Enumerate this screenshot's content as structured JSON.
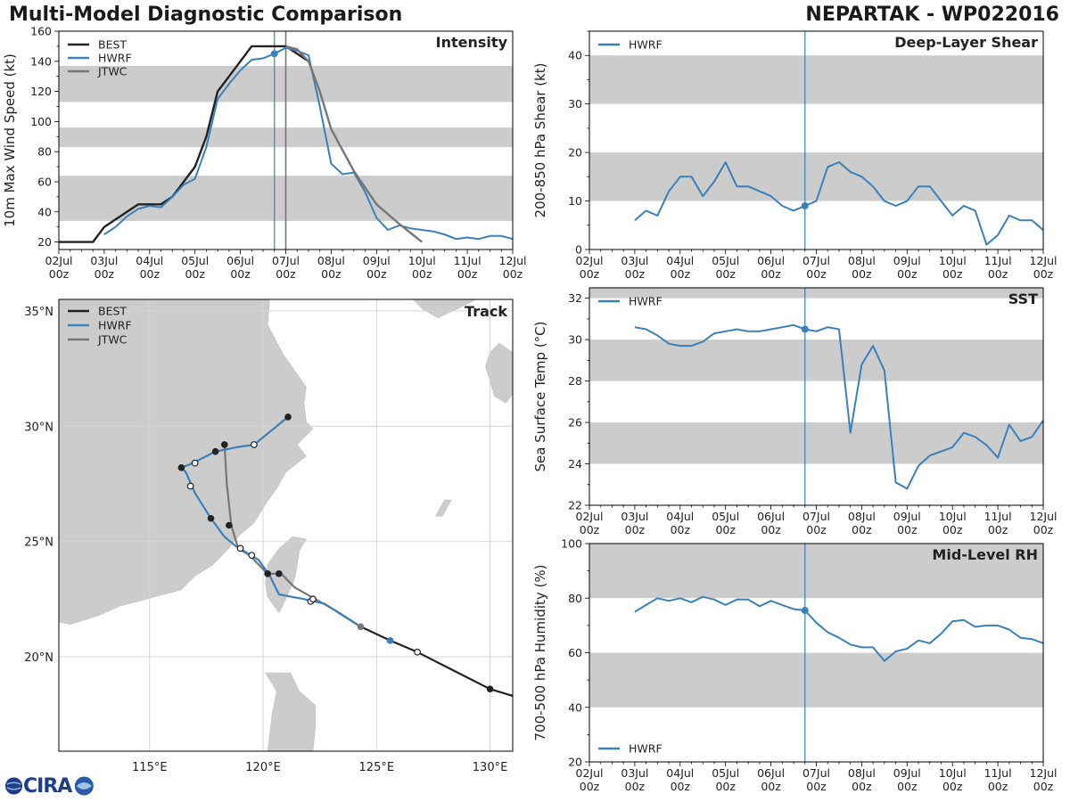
{
  "header": {
    "title": "Multi-Model Diagnostic Comparison",
    "storm": "NEPARTAK - WP022016"
  },
  "logo": {
    "text": "CIRA"
  },
  "colors": {
    "best": "#222222",
    "hwrf": "#3a80ba",
    "jtwc": "#777777",
    "band": "#cccccc",
    "land": "#cccccc",
    "frame": "#000000"
  },
  "xticks": [
    "02Jul\n00z",
    "03Jul\n00z",
    "04Jul\n00z",
    "05Jul\n00z",
    "06Jul\n00z",
    "07Jul\n00z",
    "08Jul\n00z",
    "09Jul\n00z",
    "10Jul\n00z",
    "11Jul\n00z",
    "12Jul\n00z"
  ],
  "current_time_day": 4.75,
  "chart_data": [
    {
      "id": "intensity",
      "type": "line",
      "title": "Intensity",
      "ylabel": "10m Max Wind Speed (kt)",
      "xlim": [
        0,
        10
      ],
      "ylim": [
        15,
        160
      ],
      "yticks": [
        20,
        40,
        60,
        80,
        100,
        120,
        140,
        160
      ],
      "bands": [
        [
          34,
          64
        ],
        [
          83,
          96
        ],
        [
          113,
          137
        ]
      ],
      "legend": [
        "BEST",
        "HWRF",
        "JTWC"
      ],
      "extra_vline_day": 5.0,
      "series": [
        {
          "name": "BEST",
          "x": [
            0,
            0.75,
            1,
            1.25,
            1.5,
            1.75,
            2,
            2.25,
            2.5,
            2.75,
            3,
            3.25,
            3.5,
            3.75,
            4,
            4.25,
            4.5,
            4.75,
            5,
            5.25,
            5.5
          ],
          "y": [
            20,
            20,
            30,
            35,
            40,
            45,
            45,
            45,
            50,
            60,
            70,
            90,
            120,
            130,
            140,
            150,
            150,
            150,
            150,
            145,
            140
          ]
        },
        {
          "name": "HWRF",
          "x": [
            1,
            1.25,
            1.5,
            1.75,
            2,
            2.25,
            2.5,
            2.75,
            3,
            3.25,
            3.5,
            3.75,
            4,
            4.25,
            4.5,
            4.75,
            5,
            5.25,
            5.5,
            5.75,
            6,
            6.25,
            6.5,
            6.75,
            7,
            7.25,
            7.5,
            7.75,
            8,
            8.25,
            8.5,
            8.75,
            9,
            9.25,
            9.5,
            9.75,
            10
          ],
          "y": [
            25,
            30,
            37,
            42,
            44,
            43,
            50,
            58,
            62,
            83,
            115,
            125,
            134,
            141,
            142,
            145,
            149,
            147,
            144,
            110,
            72,
            65,
            66,
            53,
            36,
            28,
            31,
            29,
            28,
            27,
            25,
            22,
            23,
            22,
            24,
            24,
            22
          ],
          "marker_x": 4.75,
          "marker_y": 145
        },
        {
          "name": "JTWC",
          "x": [
            5.0,
            5.25,
            5.5,
            5.75,
            6.0,
            6.5,
            7.0,
            7.5,
            8.0
          ],
          "y": [
            150,
            148,
            140,
            120,
            95,
            67,
            45,
            32,
            20
          ]
        }
      ]
    },
    {
      "id": "shear",
      "type": "line",
      "title": "Deep-Layer Shear",
      "ylabel": "200-850 hPa Shear (kt)",
      "xlim": [
        0,
        10
      ],
      "ylim": [
        0,
        45
      ],
      "yticks": [
        0,
        10,
        20,
        30,
        40
      ],
      "bands": [
        [
          10,
          20
        ],
        [
          30,
          40
        ]
      ],
      "legend": [
        "HWRF"
      ],
      "series": [
        {
          "name": "HWRF",
          "x": [
            1,
            1.25,
            1.5,
            1.75,
            2,
            2.25,
            2.5,
            2.75,
            3,
            3.25,
            3.5,
            3.75,
            4,
            4.25,
            4.5,
            4.75,
            5,
            5.25,
            5.5,
            5.75,
            6,
            6.25,
            6.5,
            6.75,
            7,
            7.25,
            7.5,
            7.75,
            8,
            8.25,
            8.5,
            8.75,
            9,
            9.25,
            9.5,
            9.75,
            10
          ],
          "y": [
            6,
            8,
            7,
            12,
            15,
            15,
            11,
            14,
            18,
            13,
            13,
            12,
            11,
            9,
            8,
            9,
            10,
            17,
            18,
            16,
            15,
            13,
            10,
            9,
            10,
            13,
            13,
            10,
            7,
            9,
            8,
            1,
            3,
            7,
            6,
            6,
            4
          ],
          "marker_x": 4.75,
          "marker_y": 9
        }
      ]
    },
    {
      "id": "sst",
      "type": "line",
      "title": "SST",
      "ylabel": "Sea Surface Temp (°C)",
      "xlim": [
        0,
        10
      ],
      "ylim": [
        22,
        32.5
      ],
      "yticks": [
        22,
        24,
        26,
        28,
        30,
        32
      ],
      "bands": [
        [
          24,
          26
        ],
        [
          28,
          30
        ],
        [
          32,
          32.5
        ]
      ],
      "legend": [
        "HWRF"
      ],
      "series": [
        {
          "name": "HWRF",
          "x": [
            1,
            1.25,
            1.5,
            1.75,
            2,
            2.25,
            2.5,
            2.75,
            3,
            3.25,
            3.5,
            3.75,
            4,
            4.25,
            4.5,
            4.75,
            5,
            5.25,
            5.5,
            5.75,
            6,
            6.25,
            6.5,
            6.75,
            7,
            7.25,
            7.5,
            7.75,
            8,
            8.25,
            8.5,
            8.75,
            9,
            9.25,
            9.5,
            9.75,
            10
          ],
          "y": [
            30.6,
            30.5,
            30.2,
            29.8,
            29.7,
            29.7,
            29.9,
            30.3,
            30.4,
            30.5,
            30.4,
            30.4,
            30.5,
            30.6,
            30.7,
            30.5,
            30.4,
            30.6,
            30.5,
            25.5,
            28.8,
            29.7,
            28.5,
            23.1,
            22.8,
            23.9,
            24.4,
            24.6,
            24.8,
            25.5,
            25.3,
            24.9,
            24.3,
            25.9,
            25.1,
            25.3,
            26.1
          ],
          "marker_x": 4.75,
          "marker_y": 30.5
        }
      ]
    },
    {
      "id": "rh",
      "type": "line",
      "title": "Mid-Level RH",
      "ylabel": "700-500 hPa Humidity (%)",
      "xlim": [
        0,
        10
      ],
      "ylim": [
        20,
        100
      ],
      "yticks": [
        20,
        40,
        60,
        80,
        100
      ],
      "bands": [
        [
          40,
          60
        ],
        [
          80,
          100
        ]
      ],
      "legend": [
        "HWRF"
      ],
      "legend_position": "bottom-left",
      "series": [
        {
          "name": "HWRF",
          "x": [
            1,
            1.25,
            1.5,
            1.75,
            2,
            2.25,
            2.5,
            2.75,
            3,
            3.25,
            3.5,
            3.75,
            4,
            4.25,
            4.5,
            4.75,
            5,
            5.25,
            5.5,
            5.75,
            6,
            6.25,
            6.5,
            6.75,
            7,
            7.25,
            7.5,
            7.75,
            8,
            8.25,
            8.5,
            8.75,
            9,
            9.25,
            9.5,
            9.75,
            10
          ],
          "y": [
            75,
            77.5,
            80,
            79,
            80,
            78.5,
            80.5,
            79.5,
            77.5,
            79.5,
            79.5,
            77,
            79,
            77.5,
            76,
            75.5,
            71,
            67.5,
            65.5,
            63,
            62,
            62,
            57,
            60.5,
            61.5,
            64.5,
            63.5,
            67,
            71.5,
            72,
            69.5,
            70,
            70,
            68.5,
            65.5,
            65,
            63.5
          ],
          "marker_x": 4.75,
          "marker_y": 75.5
        }
      ]
    },
    {
      "id": "track",
      "type": "line",
      "title": "Track",
      "xlim": [
        111,
        131
      ],
      "ylim": [
        15.9,
        35.5
      ],
      "xticks": [
        115,
        120,
        125,
        130
      ],
      "xtick_labels": [
        "115°E",
        "120°E",
        "125°E",
        "130°E"
      ],
      "yticks": [
        20,
        25,
        30,
        35
      ],
      "ytick_labels": [
        "20°N",
        "25°N",
        "30°N",
        "35°N"
      ],
      "legend": [
        "BEST",
        "HWRF",
        "JTWC"
      ],
      "series": [
        {
          "name": "BEST",
          "lon": [
            131,
            130,
            126.8,
            125.6,
            124.3
          ],
          "lat": [
            18.3,
            18.6,
            20.2,
            20.7,
            21.3
          ],
          "filled": [
            [
              130,
              18.6
            ]
          ],
          "open": [
            [
              126.8,
              20.2
            ]
          ]
        },
        {
          "name": "HWRF",
          "lon": [
            124.3,
            123.5,
            122.7,
            121.8,
            120.7,
            120.3,
            119.8,
            118.8,
            118.3,
            117.7,
            117,
            116.6,
            116.4,
            116.9,
            117.9,
            118.9,
            119.6,
            120.6,
            121.1
          ],
          "lat": [
            21.3,
            21.8,
            22.3,
            22.5,
            22.7,
            23.5,
            24.2,
            24.8,
            25.2,
            26,
            27.1,
            28,
            28.2,
            28.4,
            28.9,
            29.1,
            29.2,
            30,
            30.4
          ],
          "filled": [
            [
              125.6,
              20.7
            ],
            [
              117.7,
              26
            ],
            [
              116.4,
              28.2
            ],
            [
              117.9,
              28.9
            ],
            [
              121.1,
              30.4
            ]
          ],
          "open": [
            [
              122.1,
              22.4
            ],
            [
              119.5,
              24.4
            ],
            [
              116.8,
              27.4
            ],
            [
              117,
              28.4
            ],
            [
              119.6,
              29.2
            ]
          ]
        },
        {
          "name": "JTWC",
          "lon": [
            124.3,
            123.2,
            122.3,
            121.4,
            120.8,
            120.2,
            119.4,
            118.9,
            118.6,
            118.4,
            118.3
          ],
          "lat": [
            21.3,
            22,
            22.5,
            23,
            23.6,
            23.6,
            24.4,
            24.7,
            25.7,
            27.5,
            29.2
          ],
          "filled": [
            [
              124.3,
              21.3
            ],
            [
              120.7,
              23.6
            ],
            [
              120.2,
              23.6
            ],
            [
              118.5,
              25.7
            ],
            [
              118.3,
              29.2
            ]
          ],
          "open": [
            [
              122.2,
              22.5
            ],
            [
              119.0,
              24.7
            ]
          ]
        }
      ]
    }
  ]
}
